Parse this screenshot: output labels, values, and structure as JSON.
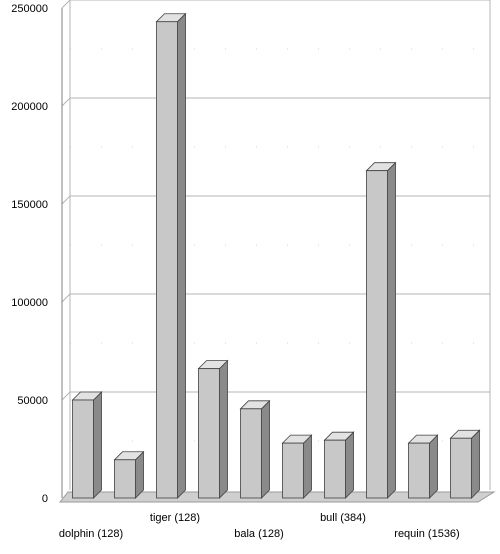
{
  "chart_data": {
    "type": "bar",
    "title": "",
    "xlabel": "",
    "ylabel": "",
    "categories": [
      "dolphin (128)",
      "",
      "tiger (128)",
      "",
      "bala (128)",
      "",
      "bull (384)",
      "",
      "requin (1536)",
      ""
    ],
    "values": [
      50000,
      19500,
      243000,
      66000,
      45500,
      28000,
      29500,
      167000,
      28000,
      30500
    ],
    "ylim": [
      0,
      250000
    ],
    "yticks": [
      0,
      50000,
      100000,
      150000,
      200000,
      250000
    ],
    "ytick_labels": [
      "0",
      "50000",
      "100000",
      "150000",
      "200000",
      "250000"
    ],
    "grid": true,
    "legend": "none",
    "colors": {
      "bar_front": "#c8c8c8",
      "bar_side": "#8a8a8a",
      "bar_top": "#e2e2e2",
      "gridline": "#b4b4b4",
      "floor": "#cfcfcf"
    }
  }
}
